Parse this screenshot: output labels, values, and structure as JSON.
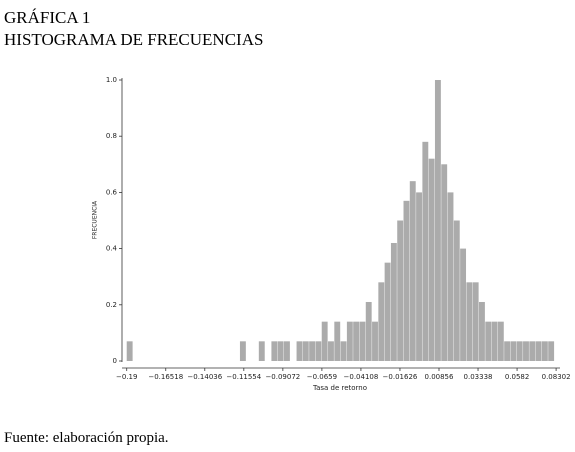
{
  "chart_data": {
    "type": "histogram",
    "title": "GRÁFICA 1",
    "subtitle": "HISTOGRAMA DE FRECUENCIAS",
    "x_label": "Tasa de retorno",
    "y_label": "FRECUENCIA",
    "source": "Fuente: elaboración propia.",
    "color": "#ababab",
    "bins": [
      -0.19,
      -0.186,
      -0.182,
      -0.178,
      -0.174,
      -0.17,
      -0.166,
      -0.162,
      -0.158,
      -0.154,
      -0.15,
      -0.146,
      -0.142,
      -0.138,
      -0.134,
      -0.13,
      -0.126,
      -0.122,
      -0.118,
      -0.114,
      -0.11,
      -0.106,
      -0.102,
      -0.098,
      -0.094,
      -0.09,
      -0.086,
      -0.082,
      -0.078,
      -0.074,
      -0.07,
      -0.066,
      -0.062,
      -0.058,
      -0.054,
      -0.05,
      -0.046,
      -0.042,
      -0.038,
      -0.034,
      -0.03,
      -0.026,
      -0.022,
      -0.018,
      -0.014,
      -0.01,
      -0.006,
      -0.002,
      0.002,
      0.006,
      0.01,
      0.014,
      0.018,
      0.022,
      0.026,
      0.03,
      0.034,
      0.038,
      0.042,
      0.046,
      0.05,
      0.054,
      0.058,
      0.062,
      0.066,
      0.07,
      0.074,
      0.078,
      0.082,
      0.086
    ],
    "counts": [
      0.07,
      0,
      0,
      0,
      0,
      0,
      0,
      0,
      0,
      0,
      0,
      0,
      0,
      0,
      0,
      0,
      0,
      0,
      0.07,
      0,
      0,
      0.07,
      0,
      0.07,
      0.07,
      0.07,
      0,
      0.07,
      0.07,
      0.07,
      0.07,
      0.14,
      0.07,
      0.14,
      0.07,
      0.14,
      0.14,
      0.14,
      0.21,
      0.14,
      0.28,
      0.35,
      0.42,
      0.5,
      0.57,
      0.64,
      0.6,
      0.78,
      0.72,
      1.0,
      0.7,
      0.6,
      0.5,
      0.4,
      0.28,
      0.28,
      0.21,
      0.14,
      0.14,
      0.14,
      0.07,
      0.07,
      0.07,
      0.07,
      0.07,
      0.07,
      0.07,
      0.07,
      0
    ],
    "xlim": [
      -0.193,
      0.0855
    ],
    "ylim": [
      0,
      1
    ],
    "xticks": [
      {
        "value": -0.19,
        "label": "−0.19"
      },
      {
        "value": -0.16518,
        "label": "−0.16518"
      },
      {
        "value": -0.14036,
        "label": "−0.14036"
      },
      {
        "value": -0.11554,
        "label": "−0.11554"
      },
      {
        "value": -0.09072,
        "label": "−0.09072"
      },
      {
        "value": -0.0659,
        "label": "−0.0659"
      },
      {
        "value": -0.04108,
        "label": "−0.04108"
      },
      {
        "value": -0.01626,
        "label": "−0.01626"
      },
      0.00856,
      0.03338,
      0.0582,
      0.08302
    ],
    "yticks": [
      0,
      0.2,
      0.4,
      0.6,
      0.8,
      {
        "value": 1,
        "label": "1.0"
      }
    ]
  }
}
